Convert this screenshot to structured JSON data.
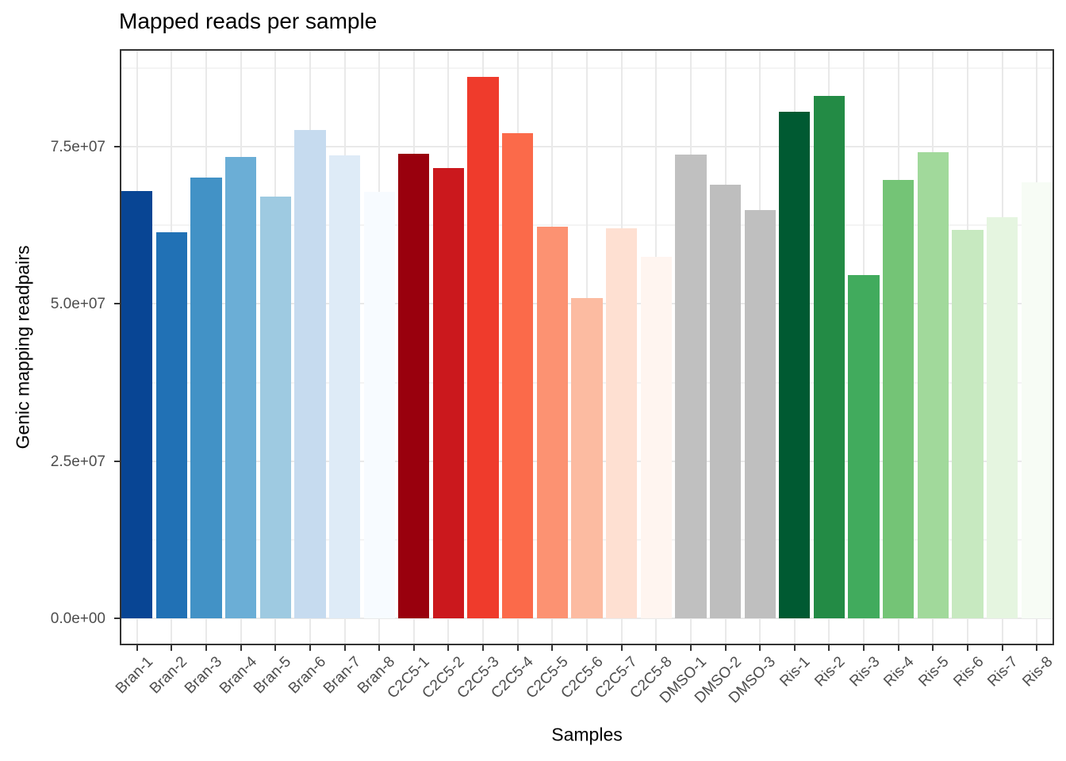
{
  "chart_data": {
    "type": "bar",
    "title": "Mapped reads per sample",
    "xlabel": "Samples",
    "ylabel": "Genic mapping readpairs",
    "legend": "none",
    "grid": true,
    "panel_style": "white panel, black border, light gray major/minor gridlines",
    "bar_color_accents": {
      "bran_group": "blues dark-to-light",
      "c2c5_group": "reds dark-to-light",
      "dmso_group": "gray",
      "ris_group": "greens dark-to-light"
    },
    "ylim": [
      0,
      90500000
    ],
    "y_axis_expansion_note": "5% expansion above max and below zero",
    "x_tick_angle_deg": 45,
    "y_major_ticks": [
      {
        "value": 0,
        "label": "0.0e+00"
      },
      {
        "value": 25000000,
        "label": "2.5e+07"
      },
      {
        "value": 50000000,
        "label": "5.0e+07"
      },
      {
        "value": 75000000,
        "label": "7.5e+07"
      }
    ],
    "y_minor_ticks": [
      12500000,
      37500000,
      62500000,
      87500000
    ],
    "categories": [
      "Bran-1",
      "Bran-2",
      "Bran-3",
      "Bran-4",
      "Bran-5",
      "Bran-6",
      "Bran-7",
      "Bran-8",
      "C2C5-1",
      "C2C5-2",
      "C2C5-3",
      "C2C5-4",
      "C2C5-5",
      "C2C5-6",
      "C2C5-7",
      "C2C5-8",
      "DMSO-1",
      "DMSO-2",
      "DMSO-3",
      "Ris-1",
      "Ris-2",
      "Ris-3",
      "Ris-4",
      "Ris-5",
      "Ris-6",
      "Ris-7",
      "Ris-8"
    ],
    "values": [
      68000000,
      61400000,
      70100000,
      73400000,
      67100000,
      77600000,
      73600000,
      67800000,
      73900000,
      71600000,
      86100000,
      77200000,
      62300000,
      50900000,
      62000000,
      57500000,
      73800000,
      69000000,
      64900000,
      80600000,
      83100000,
      54600000,
      69700000,
      74100000,
      61800000,
      63800000,
      69300000
    ],
    "colors": [
      "#084594",
      "#2171B5",
      "#4292C6",
      "#6BAED6",
      "#9ECAE1",
      "#C6DBEF",
      "#DEEBF7",
      "#F7FBFF",
      "#99000D",
      "#CB181D",
      "#EF3B2C",
      "#FB6A4A",
      "#FC9272",
      "#FCBBA1",
      "#FEE0D2",
      "#FFF5F0",
      "#C0C0C0",
      "#BEBEBE",
      "#BFBFBF",
      "#005A32",
      "#238B45",
      "#41AB5D",
      "#74C476",
      "#A1D99B",
      "#C7E9C0",
      "#E5F5E0",
      "#F7FCF5"
    ]
  }
}
